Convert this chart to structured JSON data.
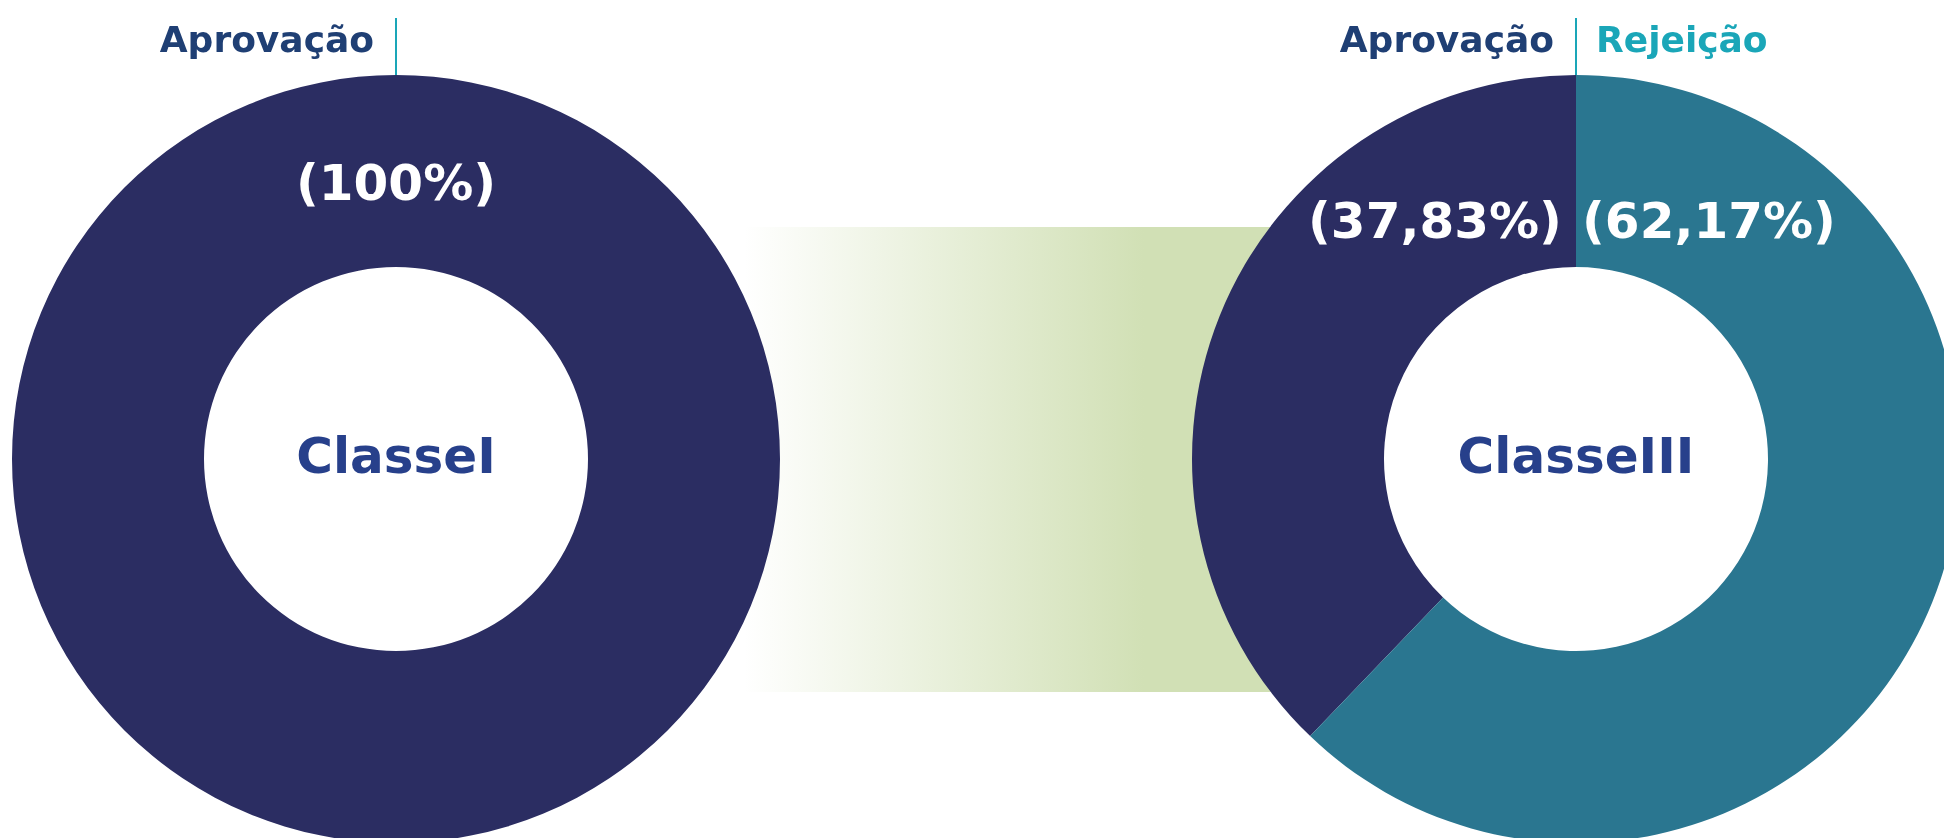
{
  "chart_data": [
    {
      "type": "donut",
      "title": "ClasseI",
      "categories": [
        "Aprovação"
      ],
      "values": [
        100
      ],
      "colors": [
        "#2b2d62"
      ],
      "value_labels": [
        "(100%)"
      ]
    },
    {
      "type": "donut",
      "title": "ClasseIII",
      "categories": [
        "Aprovação",
        "Rejeição"
      ],
      "values": [
        37.83,
        62.17
      ],
      "colors": [
        "#2b2d62",
        "#2a7690"
      ],
      "value_labels": [
        "(37,83%)",
        "(62,17%)"
      ]
    }
  ]
}
